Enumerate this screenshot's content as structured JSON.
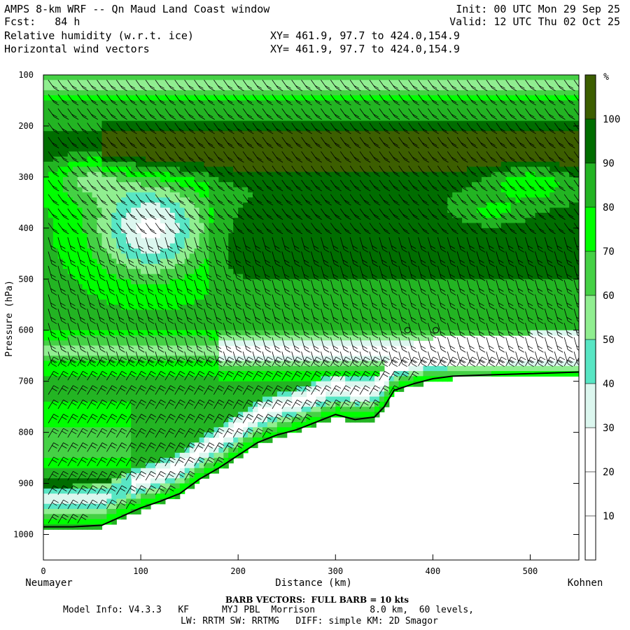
{
  "header": {
    "title": "AMPS 8-km WRF -- Qn Maud Land Coast window",
    "forecast": "Fcst:   84 h",
    "field1": "Relative humidity (w.r.t. ice)",
    "field2": "Horizontal wind vectors",
    "init": "Init: 00 UTC Mon 29 Sep 25",
    "valid": "Valid: 12 UTC Thu 02 Oct 25",
    "xy1": "XY= 461.9, 97.7 to 424.0,154.9",
    "xy2": "XY= 461.9, 97.7 to 424.0,154.9"
  },
  "footer": {
    "barb_note": "BARB VECTORS:  FULL BARB = 10 kts",
    "model_info": "Model Info: V4.3.3   KF      MYJ PBL  Morrison          8.0 km,  60 levels,",
    "physics": "LW: RRTM SW: RRTMG   DIFF: simple KM: 2D Smagor"
  },
  "chart_data": {
    "type": "heatmap",
    "title": "Relative humidity (w.r.t. ice)",
    "xlabel": "Distance (km)",
    "ylabel": "Pressure (hPa)",
    "xlim": [
      0,
      550
    ],
    "ylim": [
      1050,
      100
    ],
    "x_ticks": [
      0,
      100,
      200,
      300,
      400,
      500
    ],
    "y_ticks": [
      100,
      200,
      300,
      400,
      500,
      600,
      700,
      800,
      900,
      1000
    ],
    "x_endpoints": {
      "left": "Neumayer",
      "right": "Kohnen"
    },
    "colorbar": {
      "unit": "%",
      "levels": [
        10,
        20,
        30,
        40,
        50,
        60,
        70,
        80,
        90,
        100
      ],
      "colors": [
        "#ffffff",
        "#ffffff",
        "#ffffff",
        "#dcf7ef",
        "#58e6c4",
        "#90ee90",
        "#45d145",
        "#00ff00",
        "#23b423",
        "#006d00",
        "#3c5e00"
      ]
    },
    "terrain_surface_hPa": [
      [
        0,
        985
      ],
      [
        30,
        985
      ],
      [
        60,
        982
      ],
      [
        80,
        965
      ],
      [
        100,
        948
      ],
      [
        120,
        935
      ],
      [
        140,
        920
      ],
      [
        160,
        892
      ],
      [
        180,
        870
      ],
      [
        200,
        845
      ],
      [
        220,
        820
      ],
      [
        240,
        805
      ],
      [
        260,
        795
      ],
      [
        280,
        780
      ],
      [
        300,
        765
      ],
      [
        320,
        775
      ],
      [
        340,
        770
      ],
      [
        350,
        750
      ],
      [
        360,
        718
      ],
      [
        380,
        705
      ],
      [
        400,
        695
      ],
      [
        420,
        690
      ],
      [
        450,
        688
      ],
      [
        500,
        685
      ],
      [
        550,
        682
      ]
    ],
    "markers": [
      {
        "x": 374,
        "p": 600
      },
      {
        "x": 403,
        "p": 600
      }
    ]
  }
}
